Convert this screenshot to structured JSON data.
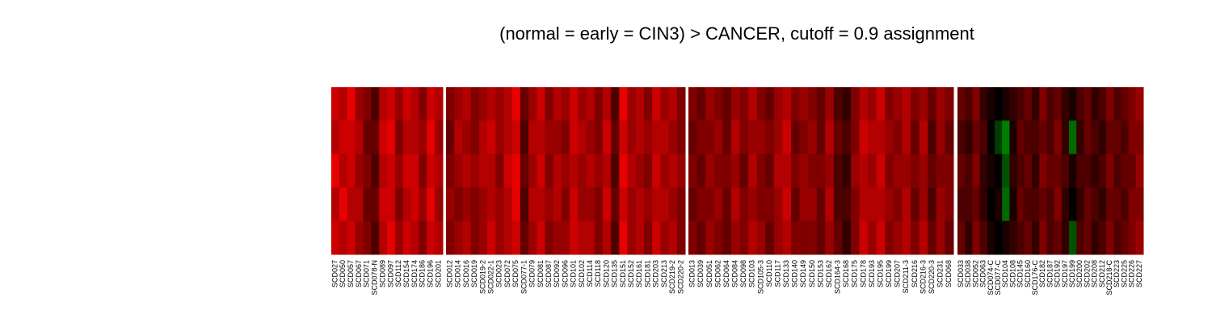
{
  "title": "(normal = early = CIN3) > CANCER, cutoff = 0.9 assignment",
  "chart_data": [
    {
      "type": "heatmap",
      "x": [
        "SCD027",
        "SCD050",
        "SCD057",
        "SCD067",
        "SCD071",
        "SCD078-N",
        "SCD089",
        "SCD097",
        "SCD112",
        "SCD154",
        "SCD174",
        "SCD186",
        "SCD196",
        "SCD201"
      ],
      "values": [
        [
          0.8,
          0.7,
          0.9,
          0.7,
          0.8
        ],
        [
          0.7,
          0.8,
          0.7,
          0.9,
          0.7
        ],
        [
          0.9,
          0.8,
          0.8,
          0.7,
          0.8
        ],
        [
          0.6,
          0.7,
          0.6,
          0.7,
          0.6
        ],
        [
          0.5,
          0.4,
          0.5,
          0.4,
          0.5
        ],
        [
          0.3,
          0.4,
          0.3,
          0.4,
          0.3
        ],
        [
          0.7,
          0.8,
          0.7,
          0.8,
          0.7
        ],
        [
          0.8,
          0.9,
          0.8,
          0.8,
          0.9
        ],
        [
          0.6,
          0.5,
          0.6,
          0.5,
          0.6
        ],
        [
          0.8,
          0.7,
          0.8,
          0.7,
          0.8
        ],
        [
          0.7,
          0.7,
          0.8,
          0.8,
          0.7
        ],
        [
          0.5,
          0.6,
          0.5,
          0.6,
          0.5
        ],
        [
          0.8,
          0.9,
          0.8,
          0.9,
          0.8
        ],
        [
          0.7,
          0.6,
          0.7,
          0.6,
          0.7
        ]
      ]
    },
    {
      "type": "heatmap",
      "x": [
        "SCD012",
        "SCD014",
        "SCD016",
        "SCD019",
        "SCD019-2",
        "SCD022-1",
        "SCD023",
        "SCD072",
        "SCD075",
        "SCD077-1",
        "SCD079",
        "SCD081",
        "SCD087",
        "SCD092",
        "SCD096",
        "SCD101",
        "SCD102",
        "SCD114",
        "SCD118",
        "SCD120",
        "SCD135",
        "SCD151",
        "SCD152",
        "SCD161",
        "SCD181",
        "SCD203",
        "SCD213",
        "SCD219-2",
        "SCD220-2"
      ],
      "values": [
        [
          0.5,
          0.4,
          0.5,
          0.6,
          0.5
        ],
        [
          0.6,
          0.7,
          0.6,
          0.5,
          0.6
        ],
        [
          0.7,
          0.6,
          0.7,
          0.6,
          0.7
        ],
        [
          0.5,
          0.5,
          0.6,
          0.5,
          0.5
        ],
        [
          0.6,
          0.7,
          0.7,
          0.6,
          0.6
        ],
        [
          0.7,
          0.8,
          0.7,
          0.7,
          0.8
        ],
        [
          0.6,
          0.6,
          0.5,
          0.6,
          0.6
        ],
        [
          0.7,
          0.7,
          0.8,
          0.7,
          0.7
        ],
        [
          0.9,
          0.8,
          0.9,
          0.9,
          0.8
        ],
        [
          0.4,
          0.3,
          0.4,
          0.3,
          0.4
        ],
        [
          0.6,
          0.7,
          0.6,
          0.7,
          0.6
        ],
        [
          0.8,
          0.7,
          0.8,
          0.7,
          0.8
        ],
        [
          0.5,
          0.6,
          0.5,
          0.6,
          0.5
        ],
        [
          0.7,
          0.6,
          0.7,
          0.7,
          0.6
        ],
        [
          0.6,
          0.5,
          0.6,
          0.5,
          0.6
        ],
        [
          0.8,
          0.8,
          0.7,
          0.8,
          0.8
        ],
        [
          0.6,
          0.7,
          0.6,
          0.6,
          0.7
        ],
        [
          0.7,
          0.6,
          0.7,
          0.6,
          0.7
        ],
        [
          0.5,
          0.5,
          0.6,
          0.5,
          0.5
        ],
        [
          0.7,
          0.8,
          0.7,
          0.8,
          0.7
        ],
        [
          0.3,
          0.4,
          0.3,
          0.4,
          0.3
        ],
        [
          0.9,
          0.8,
          0.9,
          0.8,
          0.9
        ],
        [
          0.6,
          0.6,
          0.7,
          0.6,
          0.6
        ],
        [
          0.7,
          0.7,
          0.6,
          0.7,
          0.7
        ],
        [
          0.5,
          0.6,
          0.5,
          0.6,
          0.5
        ],
        [
          0.8,
          0.7,
          0.8,
          0.7,
          0.8
        ],
        [
          0.6,
          0.7,
          0.6,
          0.7,
          0.6
        ],
        [
          0.7,
          0.6,
          0.7,
          0.6,
          0.7
        ],
        [
          0.5,
          0.5,
          0.6,
          0.5,
          0.5
        ]
      ]
    },
    {
      "type": "heatmap",
      "x": [
        "SCD013",
        "SCD039",
        "SCD051",
        "SCD062",
        "SCD064",
        "SCD084",
        "SCD098",
        "SCD103",
        "SCD105-3",
        "SCD110",
        "SCD117",
        "SCD133",
        "SCD140",
        "SCD149",
        "SCD150",
        "SCD153",
        "SCD162",
        "SCD164-3",
        "SCD168",
        "SCD175",
        "SCD178",
        "SCD193",
        "SCD195",
        "SCD199",
        "SCD207",
        "SCD211-3",
        "SCD216",
        "SCD216-3",
        "SCD220-3",
        "SCD231",
        "SCD068"
      ],
      "values": [
        [
          0.5,
          0.4,
          0.5,
          0.4,
          0.5
        ],
        [
          0.4,
          0.5,
          0.4,
          0.5,
          0.4
        ],
        [
          0.6,
          0.5,
          0.6,
          0.5,
          0.6
        ],
        [
          0.5,
          0.6,
          0.5,
          0.6,
          0.5
        ],
        [
          0.4,
          0.4,
          0.5,
          0.4,
          0.4
        ],
        [
          0.6,
          0.7,
          0.6,
          0.7,
          0.6
        ],
        [
          0.5,
          0.5,
          0.4,
          0.5,
          0.5
        ],
        [
          0.7,
          0.6,
          0.7,
          0.6,
          0.7
        ],
        [
          0.5,
          0.6,
          0.5,
          0.5,
          0.6
        ],
        [
          0.4,
          0.5,
          0.4,
          0.5,
          0.4
        ],
        [
          0.6,
          0.6,
          0.7,
          0.6,
          0.6
        ],
        [
          0.7,
          0.8,
          0.7,
          0.8,
          0.7
        ],
        [
          0.5,
          0.4,
          0.5,
          0.4,
          0.5
        ],
        [
          0.6,
          0.5,
          0.6,
          0.6,
          0.5
        ],
        [
          0.5,
          0.6,
          0.5,
          0.6,
          0.5
        ],
        [
          0.4,
          0.4,
          0.5,
          0.4,
          0.4
        ],
        [
          0.6,
          0.7,
          0.6,
          0.7,
          0.6
        ],
        [
          0.3,
          0.4,
          0.3,
          0.3,
          0.4
        ],
        [
          0.2,
          0.3,
          0.2,
          0.3,
          0.2
        ],
        [
          0.5,
          0.5,
          0.6,
          0.5,
          0.5
        ],
        [
          0.7,
          0.8,
          0.7,
          0.7,
          0.8
        ],
        [
          0.6,
          0.7,
          0.6,
          0.7,
          0.6
        ],
        [
          0.8,
          0.7,
          0.8,
          0.7,
          0.8
        ],
        [
          0.5,
          0.6,
          0.5,
          0.6,
          0.5
        ],
        [
          0.6,
          0.5,
          0.6,
          0.5,
          0.6
        ],
        [
          0.7,
          0.7,
          0.6,
          0.7,
          0.7
        ],
        [
          0.5,
          0.4,
          0.5,
          0.4,
          0.5
        ],
        [
          0.6,
          0.7,
          0.6,
          0.6,
          0.7
        ],
        [
          0.4,
          0.3,
          0.4,
          0.3,
          0.4
        ],
        [
          0.6,
          0.6,
          0.5,
          0.6,
          0.6
        ],
        [
          0.5,
          0.4,
          0.5,
          0.5,
          0.4
        ]
      ]
    },
    {
      "type": "heatmap",
      "x": [
        "SCD033",
        "SCD038",
        "SCD052",
        "SCD063",
        "SCD074-C",
        "SCD077-C",
        "SCD104",
        "SCD108",
        "SCD145",
        "SCD160",
        "SCD176-C",
        "SCD182",
        "SCD187",
        "SCD192",
        "SCD197",
        "SCD199",
        "SCD200",
        "SCD202",
        "SCD208",
        "SCD212",
        "SCD218-C",
        "SCD223",
        "SCD225",
        "SCD226",
        "SCD227"
      ],
      "values": [
        [
          0.4,
          0.3,
          0.4,
          0.3,
          0.4
        ],
        [
          0.3,
          0.2,
          0.3,
          0.3,
          0.2
        ],
        [
          0.5,
          0.4,
          0.5,
          0.4,
          0.5
        ],
        [
          0.2,
          0.3,
          0.2,
          0.2,
          0.3
        ],
        [
          0.1,
          0.0,
          0.1,
          0.0,
          0.1
        ],
        [
          0.0,
          -0.1,
          0.0,
          0.1,
          0.0
        ],
        [
          0.1,
          -0.4,
          -0.2,
          -0.3,
          0.1
        ],
        [
          0.2,
          0.1,
          0.2,
          0.1,
          0.2
        ],
        [
          0.3,
          0.4,
          0.3,
          0.4,
          0.3
        ],
        [
          0.4,
          0.3,
          0.4,
          0.3,
          0.4
        ],
        [
          0.2,
          0.3,
          0.2,
          0.3,
          0.2
        ],
        [
          0.5,
          0.4,
          0.5,
          0.4,
          0.5
        ],
        [
          0.3,
          0.3,
          0.4,
          0.3,
          0.3
        ],
        [
          0.4,
          0.5,
          0.4,
          0.5,
          0.4
        ],
        [
          0.2,
          0.2,
          0.3,
          0.2,
          0.2
        ],
        [
          0.1,
          -0.3,
          0.1,
          0.0,
          -0.2
        ],
        [
          0.3,
          0.2,
          0.3,
          0.2,
          0.3
        ],
        [
          0.4,
          0.4,
          0.3,
          0.4,
          0.4
        ],
        [
          0.2,
          0.3,
          0.2,
          0.3,
          0.2
        ],
        [
          0.3,
          0.2,
          0.3,
          0.2,
          0.3
        ],
        [
          0.5,
          0.4,
          0.5,
          0.4,
          0.5
        ],
        [
          0.3,
          0.4,
          0.3,
          0.4,
          0.3
        ],
        [
          0.4,
          0.3,
          0.4,
          0.3,
          0.4
        ],
        [
          0.5,
          0.5,
          0.4,
          0.5,
          0.5
        ],
        [
          0.6,
          0.5,
          0.6,
          0.5,
          0.6
        ]
      ]
    }
  ]
}
